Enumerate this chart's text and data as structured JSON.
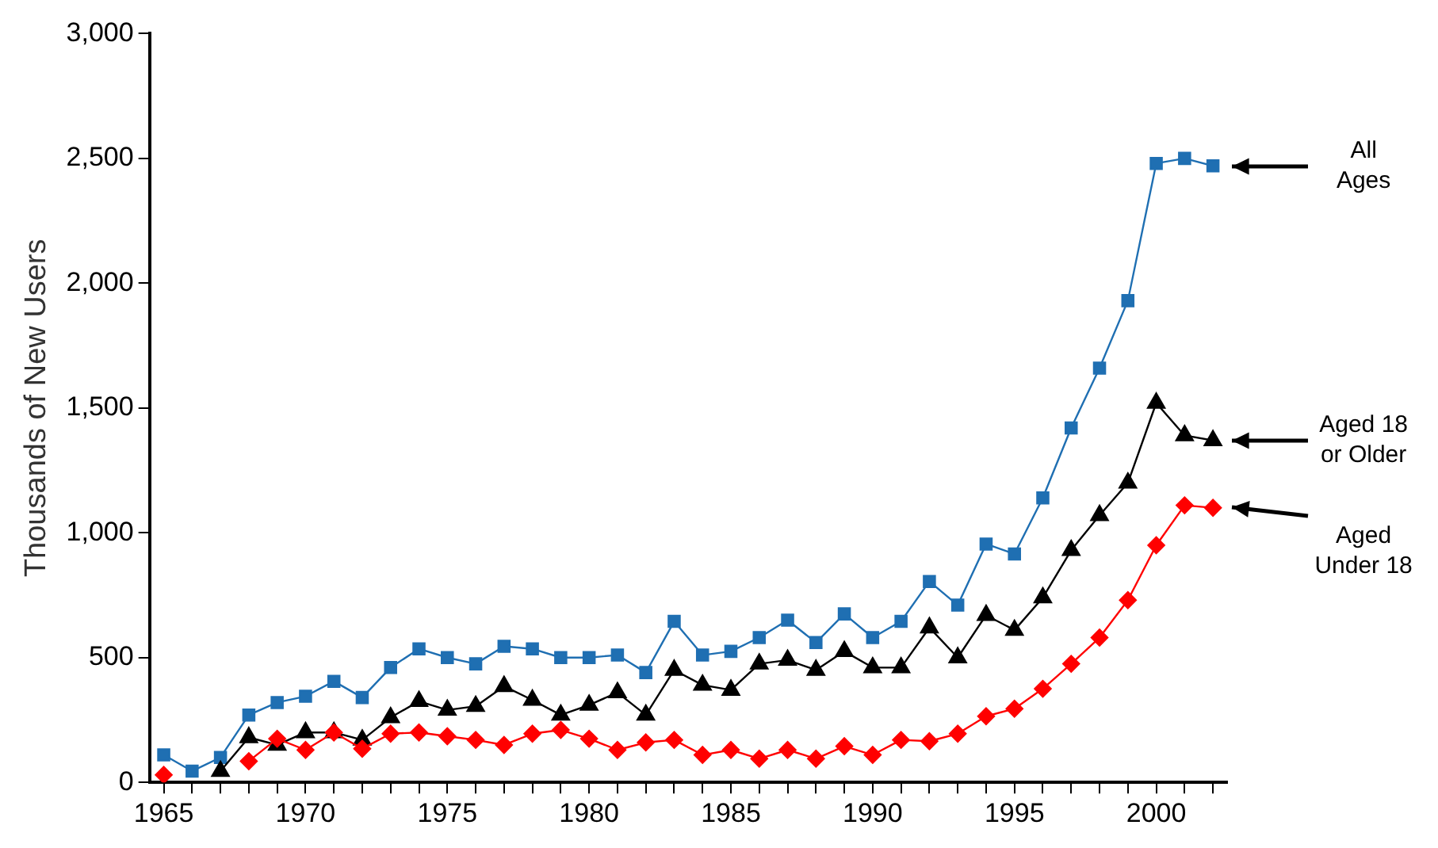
{
  "chart_data": {
    "type": "line",
    "ylabel": "Thousands of New Users",
    "x": [
      1965,
      1966,
      1967,
      1968,
      1969,
      1970,
      1971,
      1972,
      1973,
      1974,
      1975,
      1976,
      1977,
      1978,
      1979,
      1980,
      1981,
      1982,
      1983,
      1984,
      1985,
      1986,
      1987,
      1988,
      1989,
      1990,
      1991,
      1992,
      1993,
      1994,
      1995,
      1996,
      1997,
      1998,
      1999,
      2000,
      2001,
      2002
    ],
    "series": [
      {
        "color": "#1f6fb2",
        "marker": "square",
        "values": [
          110,
          45,
          100,
          270,
          320,
          345,
          405,
          340,
          460,
          535,
          500,
          475,
          545,
          535,
          500,
          500,
          510,
          440,
          645,
          510,
          525,
          580,
          650,
          560,
          675,
          580,
          645,
          805,
          710,
          955,
          915,
          1140,
          1420,
          1660,
          1930,
          2480,
          2500,
          2470
        ]
      },
      {
        "color": "#000000",
        "marker": "triangle",
        "values": [
          null,
          null,
          45,
          180,
          150,
          200,
          200,
          170,
          260,
          325,
          290,
          305,
          385,
          330,
          270,
          310,
          360,
          270,
          450,
          390,
          370,
          475,
          490,
          450,
          525,
          460,
          460,
          620,
          500,
          670,
          610,
          740,
          930,
          1070,
          1200,
          1520,
          1390,
          1370
        ]
      },
      {
        "color": "#ff0000",
        "marker": "diamond",
        "values": [
          30,
          null,
          null,
          85,
          175,
          130,
          200,
          135,
          195,
          200,
          185,
          170,
          150,
          195,
          210,
          175,
          130,
          160,
          170,
          110,
          130,
          95,
          130,
          95,
          145,
          110,
          170,
          165,
          195,
          265,
          295,
          375,
          475,
          580,
          730,
          950,
          1110,
          1100
        ]
      }
    ],
    "xlim": [
      1964.5,
      2002.5
    ],
    "xticks": [
      1965,
      {
        "value": 1966,
        "label": null
      },
      {
        "value": 1967,
        "label": null
      },
      {
        "value": 1968,
        "label": null
      },
      {
        "value": 1969,
        "label": null
      },
      1970,
      {
        "value": 1971,
        "label": null
      },
      {
        "value": 1972,
        "label": null
      },
      {
        "value": 1973,
        "label": null
      },
      {
        "value": 1974,
        "label": null
      },
      1975,
      {
        "value": 1976,
        "label": null
      },
      {
        "value": 1977,
        "label": null
      },
      {
        "value": 1978,
        "label": null
      },
      {
        "value": 1979,
        "label": null
      },
      1980,
      {
        "value": 1981,
        "label": null
      },
      {
        "value": 1982,
        "label": null
      },
      {
        "value": 1983,
        "label": null
      },
      {
        "value": 1984,
        "label": null
      },
      1985,
      {
        "value": 1986,
        "label": null
      },
      {
        "value": 1987,
        "label": null
      },
      {
        "value": 1988,
        "label": null
      },
      {
        "value": 1989,
        "label": null
      },
      1990,
      {
        "value": 1991,
        "label": null
      },
      {
        "value": 1992,
        "label": null
      },
      {
        "value": 1993,
        "label": null
      },
      {
        "value": 1994,
        "label": null
      },
      1995,
      {
        "value": 1996,
        "label": null
      },
      {
        "value": 1997,
        "label": null
      },
      {
        "value": 1998,
        "label": null
      },
      {
        "value": 1999,
        "label": null
      },
      2000,
      {
        "value": 2001,
        "label": null
      },
      {
        "value": 2002,
        "label": null
      }
    ],
    "ylim": [
      0,
      3000
    ],
    "yticks": [
      0,
      500,
      {
        "value": 1000,
        "label": "1,000"
      },
      {
        "value": 1500,
        "label": "1,500"
      },
      {
        "value": 2000,
        "label": "2,000"
      },
      {
        "value": 2500,
        "label": "2,500"
      },
      {
        "value": 3000,
        "label": "3,000"
      }
    ],
    "annotations": [
      "All Ages",
      "Aged 18 or Older",
      "Aged Under 18"
    ],
    "grid": false,
    "legend": false
  }
}
